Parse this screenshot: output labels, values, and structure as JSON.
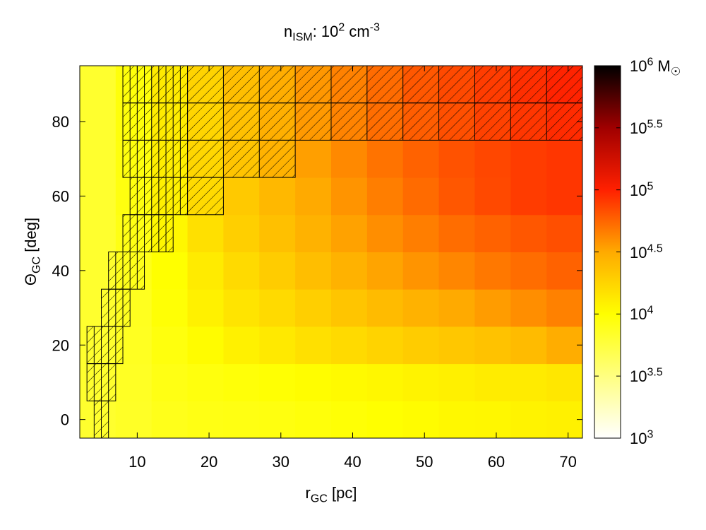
{
  "chart_data": {
    "type": "heatmap",
    "title": {
      "main": "n",
      "sub": "ISM",
      "rest": ": 10",
      "sup": "2",
      "tail": " cm",
      "sup2": "-3"
    },
    "xlabel": {
      "main": "r",
      "sub": "GC",
      "rest": " [pc]"
    },
    "ylabel": {
      "main": "Θ",
      "sub": "GC",
      "rest": " [deg]"
    },
    "x_ticks": [
      "10",
      "20",
      "30",
      "40",
      "50",
      "60",
      "70"
    ],
    "x_tick_values": [
      10,
      20,
      30,
      40,
      50,
      60,
      70
    ],
    "y_ticks": [
      "0",
      "20",
      "40",
      "60",
      "80"
    ],
    "y_tick_values": [
      0,
      20,
      40,
      60,
      80
    ],
    "xlim": [
      2,
      72
    ],
    "ylim": [
      -5,
      95
    ],
    "colorbar": {
      "label_suffix": " M",
      "sun_symbol": "☉",
      "log_range": [
        3,
        6
      ],
      "ticks": [
        {
          "base": "10",
          "exp": "3",
          "value": 3
        },
        {
          "base": "10",
          "exp": "3.5",
          "value": 3.5
        },
        {
          "base": "10",
          "exp": "4",
          "value": 4
        },
        {
          "base": "10",
          "exp": "4.5",
          "value": 4.5
        },
        {
          "base": "10",
          "exp": "5",
          "value": 5
        },
        {
          "base": "10",
          "exp": "5.5",
          "value": 5.5
        },
        {
          "base": "10",
          "exp": "6",
          "value": 6
        }
      ]
    },
    "x_bins": [
      2,
      7,
      12,
      17,
      22,
      27,
      32,
      37,
      42,
      47,
      52,
      57,
      62,
      67,
      72
    ],
    "theta_centers": [
      0,
      10,
      20,
      30,
      40,
      50,
      60,
      70,
      80,
      90
    ],
    "log_mass_rows": [
      [
        3.82,
        3.85,
        3.9,
        3.92,
        3.93,
        3.94,
        3.96,
        3.98,
        4.0,
        4.02,
        4.04,
        4.05,
        4.07,
        4.08
      ],
      [
        3.82,
        3.86,
        3.92,
        3.95,
        3.97,
        3.99,
        4.01,
        4.03,
        4.05,
        4.07,
        4.09,
        4.11,
        4.12,
        4.14
      ],
      [
        3.82,
        3.87,
        3.95,
        4.02,
        4.08,
        4.13,
        4.18,
        4.22,
        4.26,
        4.3,
        4.33,
        4.36,
        4.4,
        4.48
      ],
      [
        3.82,
        3.88,
        3.98,
        4.08,
        4.16,
        4.22,
        4.28,
        4.34,
        4.4,
        4.45,
        4.5,
        4.55,
        4.6,
        4.65
      ],
      [
        3.82,
        3.9,
        4.0,
        4.12,
        4.22,
        4.3,
        4.38,
        4.45,
        4.52,
        4.58,
        4.63,
        4.68,
        4.72,
        4.76
      ],
      [
        3.82,
        3.92,
        4.05,
        4.18,
        4.28,
        4.37,
        4.45,
        4.53,
        4.6,
        4.66,
        4.72,
        4.76,
        4.8,
        4.83
      ],
      [
        3.82,
        3.94,
        4.08,
        4.22,
        4.32,
        4.42,
        4.5,
        4.58,
        4.66,
        4.73,
        4.8,
        4.85,
        4.9,
        4.92
      ],
      [
        3.82,
        3.95,
        4.1,
        4.24,
        4.35,
        4.45,
        4.54,
        4.62,
        4.7,
        4.76,
        4.82,
        4.86,
        4.9,
        4.92
      ],
      [
        3.82,
        3.96,
        4.11,
        4.25,
        4.37,
        4.47,
        4.56,
        4.64,
        4.72,
        4.78,
        4.83,
        4.88,
        4.92,
        4.96
      ],
      [
        3.82,
        3.96,
        4.12,
        4.26,
        4.38,
        4.48,
        4.57,
        4.65,
        4.73,
        4.8,
        4.85,
        4.9,
        4.95,
        4.99
      ]
    ],
    "hatched_regions": [
      {
        "x0": 4,
        "x1": 6,
        "y0": -5,
        "y1": 5,
        "col_step": 1
      },
      {
        "x0": 3,
        "x1": 7,
        "y0": 5,
        "y1": 15,
        "col_step": 1
      },
      {
        "x0": 3,
        "x1": 8,
        "y0": 15,
        "y1": 25,
        "col_step": 1
      },
      {
        "x0": 5,
        "x1": 9,
        "y0": 25,
        "y1": 35,
        "col_step": 1
      },
      {
        "x0": 6,
        "x1": 11,
        "y0": 35,
        "y1": 45,
        "col_step": 1
      },
      {
        "x0": 8,
        "x1": 15,
        "y0": 45,
        "y1": 55,
        "col_step": 1
      },
      {
        "x0": 9,
        "x1": 17,
        "y0": 55,
        "y1": 65,
        "col_step": 1
      },
      {
        "x0": 17,
        "x1": 22,
        "y0": 55,
        "y1": 65,
        "col_step": 5
      },
      {
        "x0": 8,
        "x1": 17,
        "y0": 65,
        "y1": 75,
        "col_step": 1
      },
      {
        "x0": 17,
        "x1": 32,
        "y0": 65,
        "y1": 75,
        "col_step": 5
      },
      {
        "x0": 8,
        "x1": 17,
        "y0": 75,
        "y1": 85,
        "col_step": 1
      },
      {
        "x0": 17,
        "x1": 72,
        "y0": 75,
        "y1": 85,
        "col_step": 5
      },
      {
        "x0": 8,
        "x1": 17,
        "y0": 85,
        "y1": 95,
        "col_step": 1
      },
      {
        "x0": 17,
        "x1": 72,
        "y0": 85,
        "y1": 95,
        "col_step": 5
      }
    ]
  }
}
